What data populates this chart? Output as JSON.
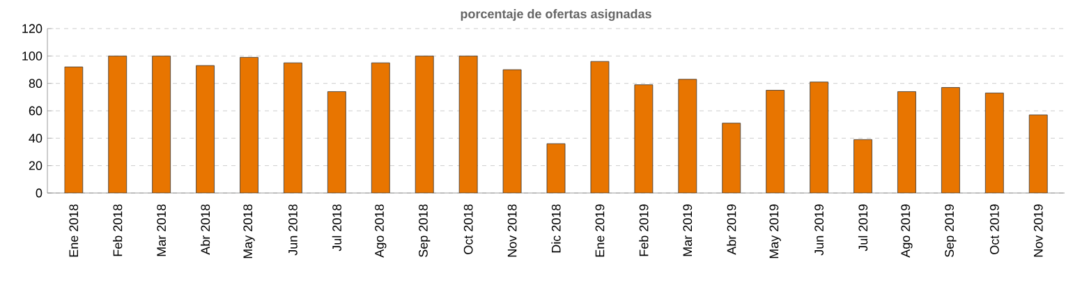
{
  "chart_data": {
    "type": "bar",
    "title": "porcentaje de ofertas asignadas",
    "categories": [
      "Ene 2018",
      "Feb 2018",
      "Mar 2018",
      "Abr 2018",
      "May 2018",
      "Jun 2018",
      "Jul 2018",
      "Ago 2018",
      "Sep 2018",
      "Oct 2018",
      "Nov 2018",
      "Dic 2018",
      "Ene 2019",
      "Feb 2019",
      "Mar 2019",
      "Abr 2019",
      "May 2019",
      "Jun 2019",
      "Jul 2019",
      "Ago 2019",
      "Sep 2019",
      "Oct 2019",
      "Nov 2019"
    ],
    "values": [
      92,
      100,
      100,
      93,
      99,
      95,
      74,
      95,
      100,
      100,
      90,
      36,
      96,
      79,
      83,
      51,
      75,
      81,
      39,
      74,
      77,
      73,
      57
    ],
    "color": "#e87500",
    "ylim": [
      0,
      120
    ],
    "yticks": [
      0,
      20,
      40,
      60,
      80,
      100,
      120
    ],
    "grid": "y"
  }
}
